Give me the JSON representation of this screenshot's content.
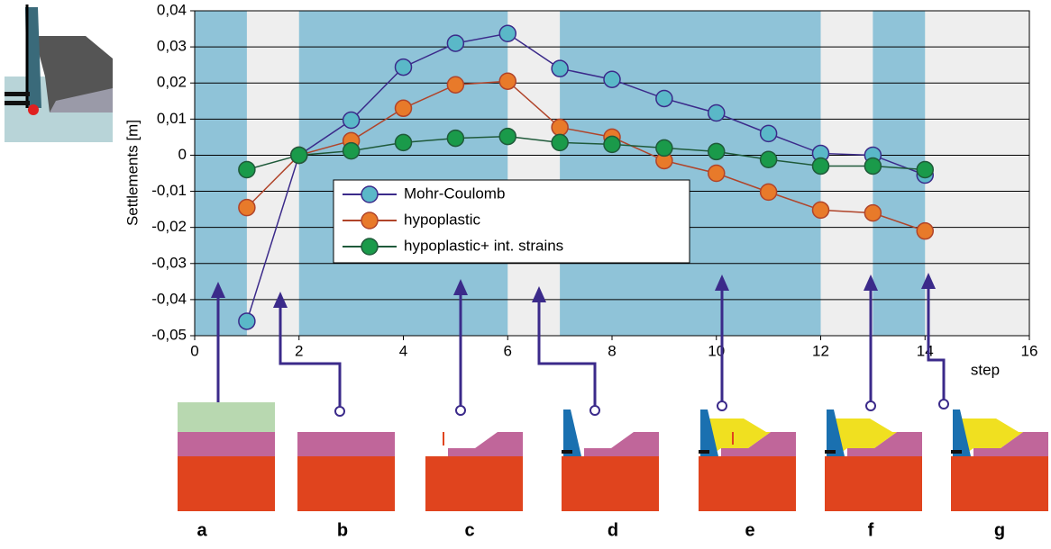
{
  "chart_data": {
    "type": "line",
    "y_label": "Settlements [m]",
    "x_label": "step",
    "x": [
      1,
      2,
      3,
      4,
      5,
      6,
      7,
      8,
      9,
      10,
      11,
      12,
      13,
      14
    ],
    "series": [
      {
        "name": "Mohr-Coulomb",
        "color": "#3b2a8a",
        "marker_color": "#5ab8c8",
        "values": [
          -0.046,
          0,
          0.0097,
          0.0244,
          0.031,
          0.0337,
          0.024,
          0.021,
          0.0157,
          0.0117,
          0.006,
          0.0005,
          0,
          -0.0055
        ]
      },
      {
        "name": "hypoplastic",
        "color": "#b0442a",
        "marker_color": "#e87a2a",
        "values": [
          -0.0145,
          0,
          0.004,
          0.013,
          0.0195,
          0.0205,
          0.0077,
          0.005,
          -0.0015,
          -0.005,
          -0.0102,
          -0.0152,
          -0.016,
          -0.021
        ]
      },
      {
        "name": "hypoplastic+ int. strains",
        "color": "#1f5a3a",
        "marker_color": "#1a9a4a",
        "values": [
          -0.004,
          0,
          0.0012,
          0.0035,
          0.0047,
          0.0052,
          0.0035,
          0.003,
          0.002,
          0.001,
          -0.0012,
          -0.003,
          -0.003,
          -0.004
        ]
      }
    ],
    "xlim": [
      0,
      16
    ],
    "xticks": [
      0,
      2,
      4,
      6,
      8,
      10,
      12,
      14,
      16
    ],
    "ylim": [
      -0.05,
      0.04
    ],
    "yticks": [
      {
        "value": 0.04,
        "label": "0,04"
      },
      {
        "value": 0.03,
        "label": "0,03"
      },
      {
        "value": 0.02,
        "label": "0,02"
      },
      {
        "value": 0.01,
        "label": "0,01"
      },
      0,
      {
        "value": -0.01,
        "label": "-0,01"
      },
      {
        "value": -0.02,
        "label": "-0,02"
      },
      {
        "value": -0.03,
        "label": "-0,03"
      },
      {
        "value": -0.04,
        "label": "-0,04"
      },
      {
        "value": -0.05,
        "label": "-0,05"
      }
    ],
    "grid": true,
    "shaded_ranges": [
      [
        0,
        1
      ],
      [
        2,
        6
      ],
      [
        7,
        12
      ],
      [
        13,
        14
      ]
    ],
    "shade_color": "#8fc3d8",
    "background": "#eeeeee"
  },
  "panels": [
    "a",
    "b",
    "c",
    "d",
    "e",
    "f",
    "g"
  ]
}
